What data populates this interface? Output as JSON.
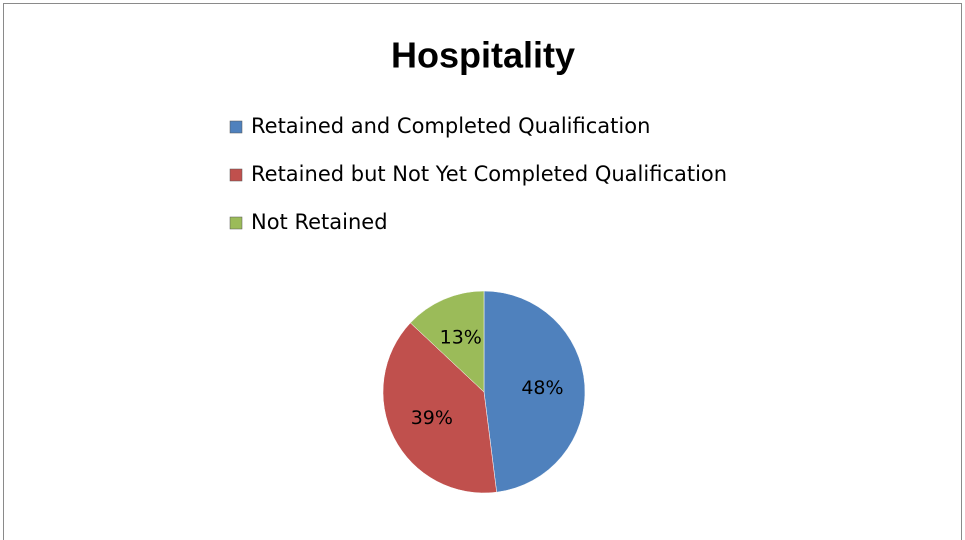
{
  "chart_data": {
    "type": "pie",
    "title": "Hospitality",
    "categories": [
      "Retained and Completed Qualification",
      "Retained but Not Yet Completed Qualification",
      "Not Retained"
    ],
    "values": [
      48,
      39,
      13
    ],
    "value_labels": [
      "48%",
      "39%",
      "13%"
    ],
    "colors": [
      "#4f81bd",
      "#c0504d",
      "#9bbb59"
    ],
    "legend": "top"
  }
}
